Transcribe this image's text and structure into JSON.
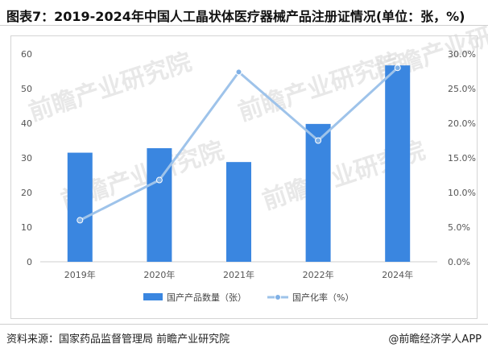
{
  "title": "图表7：2019-2024年中国人工晶状体医疗器械产品注册证情况(单位：张，%)",
  "footer": {
    "source": "资料来源：国家药品监督管理局 前瞻产业研究院",
    "brand": "@前瞻经济学人APP"
  },
  "watermark": "前瞻产业研究院",
  "colors": {
    "bar": "#3a86e0",
    "line": "#9ec3ea",
    "marker": "#7fb0e6"
  },
  "chart_data": {
    "type": "bar",
    "categories": [
      "2019年",
      "2020年",
      "2021年",
      "2022年",
      "2024年"
    ],
    "series": [
      {
        "name": "国产产品数量（张）",
        "type": "bar",
        "axis": "left",
        "values": [
          31.5,
          32.8,
          28.8,
          39.8,
          56.7
        ]
      },
      {
        "name": "国产化率（%）",
        "type": "line",
        "axis": "right",
        "values": [
          6.0,
          11.8,
          27.4,
          17.5,
          28.0
        ]
      }
    ],
    "ylim_left": [
      0,
      60
    ],
    "yticks_left": [
      "0",
      "10",
      "20",
      "30",
      "40",
      "50",
      "60"
    ],
    "ylim_right": [
      0,
      30
    ],
    "yticks_right": [
      "0.0%",
      "5.0%",
      "10.0%",
      "15.0%",
      "20.0%",
      "25.0%",
      "30.0%"
    ],
    "grid": false,
    "legend": "bottom"
  }
}
